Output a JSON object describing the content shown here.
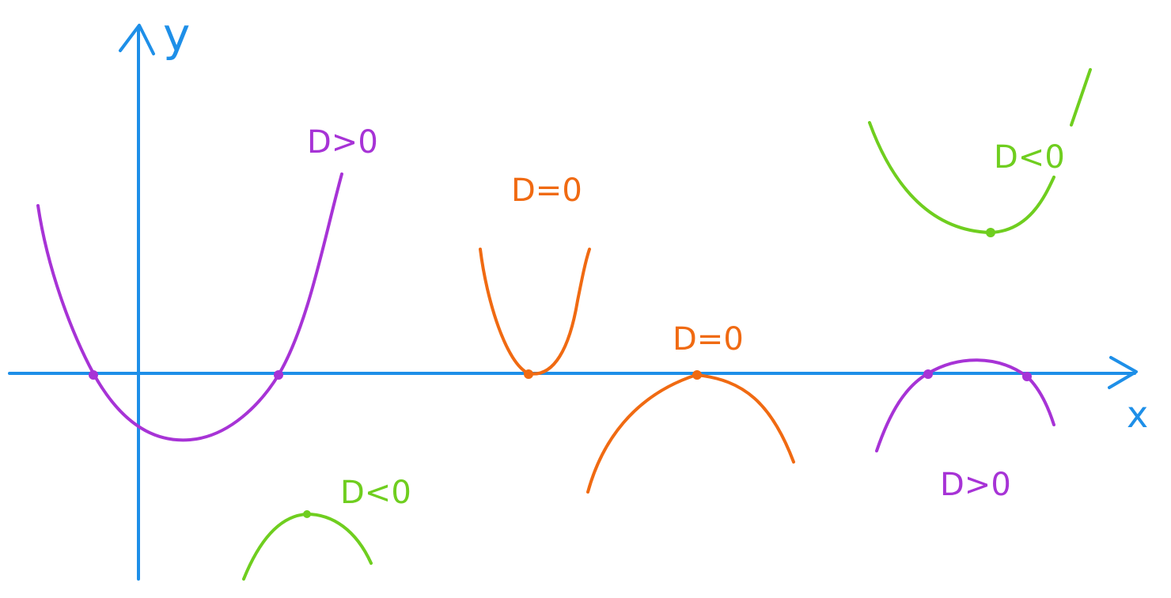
{
  "axes": {
    "x_label": "x",
    "y_label": "y",
    "color": "#1e8fe8"
  },
  "colors": {
    "positive": "#a733d6",
    "zero": "#f06a12",
    "negative": "#6fce1f"
  },
  "labels": {
    "d_pos_1": "D>0",
    "d_zero_1": "D=0",
    "d_zero_2": "D=0",
    "d_neg_1": "D<0",
    "d_neg_2": "D<0",
    "d_pos_2": "D>0"
  }
}
